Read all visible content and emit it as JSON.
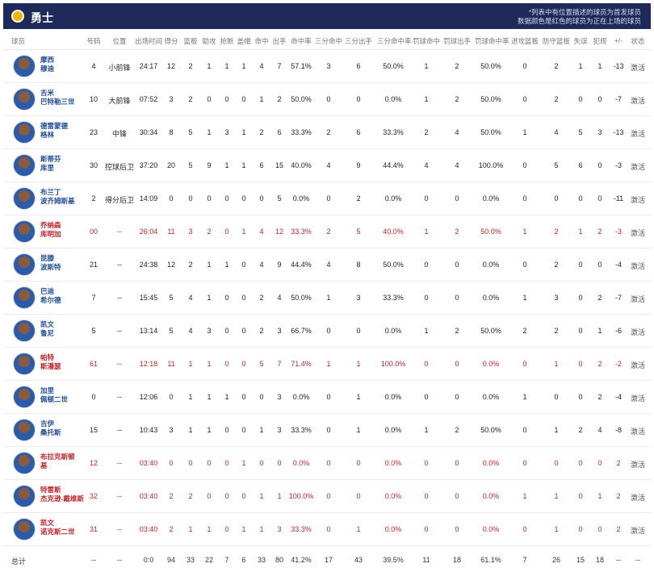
{
  "header": {
    "team_name": "勇士",
    "note_line1": "*列表中有位置描述的球员为首发球员",
    "note_line2": "数据颜色是红色的球员为正在上场的球员",
    "team_color": "#1d2a5a"
  },
  "columns": {
    "player": "球员",
    "number": "号码",
    "position": "位置",
    "minutes": "出场时间",
    "points": "得分",
    "rebounds": "篮板",
    "assists": "助攻",
    "steals": "抢断",
    "blocks": "盖帽",
    "fgm": "命中",
    "fga": "出手",
    "fg_pct": "命中率",
    "tpm": "三分命中",
    "tpa": "三分出手",
    "tp_pct": "三分命中率",
    "ftm": "罚球命中",
    "fta": "罚球出手",
    "ft_pct": "罚球命中率",
    "oreb": "进攻篮板",
    "dreb": "防守篮板",
    "tov": "失误",
    "pf": "犯规",
    "pm": "+/-",
    "status": "状态"
  },
  "players": [
    {
      "n1": "摩西",
      "n2": "穆迪",
      "num": "4",
      "pos": "小前锋",
      "min": "24:17",
      "pts": "12",
      "reb": "2",
      "ast": "1",
      "stl": "1",
      "blk": "1",
      "fgm": "4",
      "fga": "7",
      "fgp": "57.1%",
      "tpm": "3",
      "tpa": "6",
      "tpp": "50.0%",
      "ftm": "1",
      "fta": "2",
      "ftp": "50.0%",
      "oreb": "0",
      "dreb": "2",
      "tov": "1",
      "pf": "1",
      "pm": "-13",
      "st": "激活",
      "red": false
    },
    {
      "n1": "吉米",
      "n2": "巴特勒三世",
      "num": "10",
      "pos": "大前锋",
      "min": "07:52",
      "pts": "3",
      "reb": "2",
      "ast": "0",
      "stl": "0",
      "blk": "0",
      "fgm": "1",
      "fga": "2",
      "fgp": "50.0%",
      "tpm": "0",
      "tpa": "0",
      "tpp": "0.0%",
      "ftm": "1",
      "fta": "2",
      "ftp": "50.0%",
      "oreb": "0",
      "dreb": "2",
      "tov": "0",
      "pf": "0",
      "pm": "-7",
      "st": "激活",
      "red": false
    },
    {
      "n1": "德雷蒙德",
      "n2": "格林",
      "num": "23",
      "pos": "中锋",
      "min": "30:34",
      "pts": "8",
      "reb": "5",
      "ast": "1",
      "stl": "3",
      "blk": "1",
      "fgm": "2",
      "fga": "6",
      "fgp": "33.3%",
      "tpm": "2",
      "tpa": "6",
      "tpp": "33.3%",
      "ftm": "2",
      "fta": "4",
      "ftp": "50.0%",
      "oreb": "1",
      "dreb": "4",
      "tov": "5",
      "pf": "3",
      "pm": "-13",
      "st": "激活",
      "red": false
    },
    {
      "n1": "斯蒂芬",
      "n2": "库里",
      "num": "30",
      "pos": "控球后卫",
      "min": "37:20",
      "pts": "20",
      "reb": "5",
      "ast": "9",
      "stl": "1",
      "blk": "1",
      "fgm": "6",
      "fga": "15",
      "fgp": "40.0%",
      "tpm": "4",
      "tpa": "9",
      "tpp": "44.4%",
      "ftm": "4",
      "fta": "4",
      "ftp": "100.0%",
      "oreb": "0",
      "dreb": "5",
      "tov": "6",
      "pf": "0",
      "pm": "-3",
      "st": "激活",
      "red": false
    },
    {
      "n1": "布兰丁",
      "n2": "波齐姆斯基",
      "num": "2",
      "pos": "得分后卫",
      "min": "14:09",
      "pts": "0",
      "reb": "0",
      "ast": "0",
      "stl": "0",
      "blk": "0",
      "fgm": "0",
      "fga": "5",
      "fgp": "0.0%",
      "tpm": "0",
      "tpa": "2",
      "tpp": "0.0%",
      "ftm": "0",
      "fta": "0",
      "ftp": "0.0%",
      "oreb": "0",
      "dreb": "0",
      "tov": "0",
      "pf": "0",
      "pm": "-11",
      "st": "激活",
      "red": false
    },
    {
      "n1": "乔纳森",
      "n2": "库明加",
      "num": "00",
      "pos": "--",
      "min": "26:04",
      "pts": "11",
      "reb": "3",
      "ast": "2",
      "stl": "0",
      "blk": "1",
      "fgm": "4",
      "fga": "12",
      "fgp": "33.3%",
      "tpm": "2",
      "tpa": "5",
      "tpp": "40.0%",
      "ftm": "1",
      "fta": "2",
      "ftp": "50.0%",
      "oreb": "1",
      "dreb": "2",
      "tov": "1",
      "pf": "2",
      "pm": "-3",
      "st": "激活",
      "red": true
    },
    {
      "n1": "昆滕",
      "n2": "波斯特",
      "num": "21",
      "pos": "--",
      "min": "24:38",
      "pts": "12",
      "reb": "2",
      "ast": "1",
      "stl": "1",
      "blk": "0",
      "fgm": "4",
      "fga": "9",
      "fgp": "44.4%",
      "tpm": "4",
      "tpa": "8",
      "tpp": "50.0%",
      "ftm": "0",
      "fta": "0",
      "ftp": "0.0%",
      "oreb": "0",
      "dreb": "2",
      "tov": "0",
      "pf": "0",
      "pm": "-4",
      "st": "激活",
      "red": false
    },
    {
      "n1": "巴迪",
      "n2": "希尔德",
      "num": "7",
      "pos": "--",
      "min": "15:45",
      "pts": "5",
      "reb": "4",
      "ast": "1",
      "stl": "0",
      "blk": "0",
      "fgm": "2",
      "fga": "4",
      "fgp": "50.0%",
      "tpm": "1",
      "tpa": "3",
      "tpp": "33.3%",
      "ftm": "0",
      "fta": "0",
      "ftp": "0.0%",
      "oreb": "1",
      "dreb": "3",
      "tov": "0",
      "pf": "2",
      "pm": "-7",
      "st": "激活",
      "red": false
    },
    {
      "n1": "凯文",
      "n2": "鲁尼",
      "num": "5",
      "pos": "--",
      "min": "13:14",
      "pts": "5",
      "reb": "4",
      "ast": "3",
      "stl": "0",
      "blk": "0",
      "fgm": "2",
      "fga": "3",
      "fgp": "66.7%",
      "tpm": "0",
      "tpa": "0",
      "tpp": "0.0%",
      "ftm": "1",
      "fta": "2",
      "ftp": "50.0%",
      "oreb": "2",
      "dreb": "2",
      "tov": "0",
      "pf": "1",
      "pm": "-6",
      "st": "激活",
      "red": false
    },
    {
      "n1": "帕特",
      "n2": "斯潘瑟",
      "num": "61",
      "pos": "--",
      "min": "12:18",
      "pts": "11",
      "reb": "1",
      "ast": "1",
      "stl": "0",
      "blk": "0",
      "fgm": "5",
      "fga": "7",
      "fgp": "71.4%",
      "tpm": "1",
      "tpa": "1",
      "tpp": "100.0%",
      "ftm": "0",
      "fta": "0",
      "ftp": "0.0%",
      "oreb": "0",
      "dreb": "1",
      "tov": "0",
      "pf": "2",
      "pm": "-2",
      "st": "激活",
      "red": true
    },
    {
      "n1": "加里",
      "n2": "佩顿二世",
      "num": "0",
      "pos": "--",
      "min": "12:06",
      "pts": "0",
      "reb": "1",
      "ast": "1",
      "stl": "1",
      "blk": "0",
      "fgm": "0",
      "fga": "3",
      "fgp": "0.0%",
      "tpm": "0",
      "tpa": "1",
      "tpp": "0.0%",
      "ftm": "0",
      "fta": "0",
      "ftp": "0.0%",
      "oreb": "1",
      "dreb": "0",
      "tov": "0",
      "pf": "2",
      "pm": "-4",
      "st": "激活",
      "red": false
    },
    {
      "n1": "吉伊",
      "n2": "桑托斯",
      "num": "15",
      "pos": "--",
      "min": "10:43",
      "pts": "3",
      "reb": "1",
      "ast": "1",
      "stl": "0",
      "blk": "0",
      "fgm": "1",
      "fga": "3",
      "fgp": "33.3%",
      "tpm": "0",
      "tpa": "1",
      "tpp": "0.0%",
      "ftm": "1",
      "fta": "2",
      "ftp": "50.0%",
      "oreb": "0",
      "dreb": "1",
      "tov": "2",
      "pf": "4",
      "pm": "-8",
      "st": "激活",
      "red": false
    },
    {
      "n1": "布拉克斯顿",
      "n2": "基",
      "num": "12",
      "pos": "--",
      "min": "03:40",
      "pts": "0",
      "reb": "0",
      "ast": "0",
      "stl": "0",
      "blk": "1",
      "fgm": "0",
      "fga": "0",
      "fgp": "0.0%",
      "tpm": "0",
      "tpa": "0",
      "tpp": "0.0%",
      "ftm": "0",
      "fta": "0",
      "ftp": "0.0%",
      "oreb": "0",
      "dreb": "0",
      "tov": "0",
      "pf": "0",
      "pm": "2",
      "st": "激活",
      "red": true
    },
    {
      "n1": "特雷斯",
      "n2": "杰克逊-戴维斯",
      "num": "32",
      "pos": "--",
      "min": "03:40",
      "pts": "2",
      "reb": "2",
      "ast": "0",
      "stl": "0",
      "blk": "0",
      "fgm": "1",
      "fga": "1",
      "fgp": "100.0%",
      "tpm": "0",
      "tpa": "0",
      "tpp": "0.0%",
      "ftm": "0",
      "fta": "0",
      "ftp": "0.0%",
      "oreb": "1",
      "dreb": "1",
      "tov": "0",
      "pf": "1",
      "pm": "2",
      "st": "激活",
      "red": true
    },
    {
      "n1": "凯文",
      "n2": "诺克斯二世",
      "num": "31",
      "pos": "--",
      "min": "03:40",
      "pts": "2",
      "reb": "1",
      "ast": "1",
      "stl": "0",
      "blk": "1",
      "fgm": "1",
      "fga": "3",
      "fgp": "33.3%",
      "tpm": "0",
      "tpa": "1",
      "tpp": "0.0%",
      "ftm": "0",
      "fta": "0",
      "ftp": "0.0%",
      "oreb": "0",
      "dreb": "1",
      "tov": "0",
      "pf": "0",
      "pm": "2",
      "st": "激活",
      "red": true
    }
  ],
  "totals": {
    "label": "总计",
    "num": "--",
    "pos": "--",
    "min": "0:0",
    "pts": "94",
    "reb": "33",
    "ast": "22",
    "stl": "7",
    "blk": "6",
    "fgm": "33",
    "fga": "80",
    "fgp": "41.2%",
    "tpm": "17",
    "tpa": "43",
    "tpp": "39.5%",
    "ftm": "11",
    "fta": "18",
    "ftp": "61.1%",
    "oreb": "7",
    "dreb": "26",
    "tov": "15",
    "pf": "18",
    "pm": "--",
    "st": "--"
  },
  "colors": {
    "active_player": "#c4242b",
    "name_link": "#1f4e9a"
  }
}
